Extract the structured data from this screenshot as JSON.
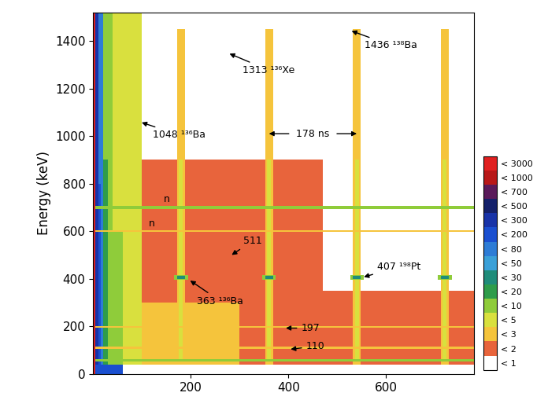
{
  "chart_data": {
    "type": "heatmap",
    "y_label": "Energy (keV)",
    "xlim": [
      0,
      780
    ],
    "ylim": [
      0,
      1520
    ],
    "xticks": [
      200,
      400,
      600
    ],
    "yticks": [
      0,
      200,
      400,
      600,
      800,
      1000,
      1200,
      1400
    ],
    "grid": false,
    "colorbar": {
      "bounds": [
        0,
        1,
        2,
        3,
        5,
        10,
        20,
        30,
        50,
        80,
        200,
        300,
        500,
        700,
        1000,
        3000
      ],
      "labels": [
        "< 1",
        "< 2",
        "< 3",
        "< 5",
        "< 10",
        "< 20",
        "< 30",
        "< 50",
        "< 80",
        "< 200",
        "< 300",
        "< 500",
        "< 700",
        "< 1000",
        "< 3000"
      ],
      "colors": [
        "#ffffff",
        "#e8643c",
        "#f5c43c",
        "#d9e03e",
        "#8fcc3a",
        "#2e9c4a",
        "#1f8c7a",
        "#3aa0d8",
        "#2d7cd6",
        "#1a4fd0",
        "#1833a8",
        "#14206a",
        "#5a1a5a",
        "#b81818",
        "#e02020"
      ]
    },
    "cells": [
      {
        "x": [
          100,
          470
        ],
        "y": [
          40,
          900
        ],
        "value": 1.5
      },
      {
        "x": [
          470,
          780
        ],
        "y": [
          40,
          350
        ],
        "value": 1.5
      },
      {
        "x": [
          60,
          300
        ],
        "y": [
          40,
          300
        ],
        "value": 2.5
      },
      {
        "x": [
          40,
          100
        ],
        "y": [
          40,
          1520
        ],
        "value": 4
      },
      {
        "x": [
          30,
          60
        ],
        "y": [
          40,
          600
        ],
        "value": 7
      },
      {
        "x": [
          20,
          40
        ],
        "y": [
          40,
          1520
        ],
        "value": 7
      },
      {
        "x": [
          15,
          30
        ],
        "y": [
          40,
          900
        ],
        "value": 15
      },
      {
        "x": [
          10,
          20
        ],
        "y": [
          40,
          1520
        ],
        "value": 60
      },
      {
        "x": [
          6,
          15
        ],
        "y": [
          40,
          800
        ],
        "value": 150
      },
      {
        "x": [
          3,
          10
        ],
        "y": [
          40,
          1520
        ],
        "value": 250
      },
      {
        "x": [
          0,
          60
        ],
        "y": [
          0,
          40
        ],
        "value": 100
      },
      {
        "x": [
          172,
          188
        ],
        "y": [
          40,
          1450
        ],
        "value": 2.5
      },
      {
        "x": [
          352,
          368
        ],
        "y": [
          40,
          1450
        ],
        "value": 2.5
      },
      {
        "x": [
          532,
          548
        ],
        "y": [
          40,
          1450
        ],
        "value": 2.5
      },
      {
        "x": [
          712,
          728
        ],
        "y": [
          40,
          1450
        ],
        "value": 2.5
      },
      {
        "x": [
          176,
          184
        ],
        "y": [
          60,
          900
        ],
        "value": 4
      },
      {
        "x": [
          356,
          364
        ],
        "y": [
          60,
          900
        ],
        "value": 4
      },
      {
        "x": [
          536,
          544
        ],
        "y": [
          60,
          900
        ],
        "value": 4
      },
      {
        "x": [
          716,
          724
        ],
        "y": [
          60,
          900
        ],
        "value": 4
      },
      {
        "x": [
          0,
          780
        ],
        "y": [
          693,
          707
        ],
        "value": 7
      },
      {
        "x": [
          0,
          780
        ],
        "y": [
          596,
          604
        ],
        "value": 2.5
      },
      {
        "x": [
          0,
          780
        ],
        "y": [
          193,
          201
        ],
        "value": 2.5
      },
      {
        "x": [
          0,
          780
        ],
        "y": [
          106,
          114
        ],
        "value": 2.5
      },
      {
        "x": [
          0,
          780
        ],
        "y": [
          52,
          64
        ],
        "value": 7
      },
      {
        "x": [
          166,
          194
        ],
        "y": [
          397,
          417
        ],
        "value": 7
      },
      {
        "x": [
          346,
          374
        ],
        "y": [
          397,
          417
        ],
        "value": 7
      },
      {
        "x": [
          526,
          554
        ],
        "y": [
          397,
          417
        ],
        "value": 7
      },
      {
        "x": [
          706,
          734
        ],
        "y": [
          397,
          417
        ],
        "value": 7
      },
      {
        "x": [
          172,
          188
        ],
        "y": [
          401,
          413
        ],
        "value": 20
      },
      {
        "x": [
          352,
          368
        ],
        "y": [
          401,
          413
        ],
        "value": 20
      },
      {
        "x": [
          532,
          548
        ],
        "y": [
          401,
          413
        ],
        "value": 20
      },
      {
        "x": [
          712,
          728
        ],
        "y": [
          401,
          413
        ],
        "value": 20
      },
      {
        "x": [
          0,
          5
        ],
        "y": [
          0,
          1520
        ],
        "value": 1500
      }
    ],
    "annotations": [
      {
        "text": "1436 ¹³⁸Ba",
        "x": 525,
        "y": 1445
      },
      {
        "text": "1313 ¹³⁶Xe",
        "x": 275,
        "y": 1350
      },
      {
        "text": "1048 ¹³⁶Ba",
        "x": 95,
        "y": 1060
      },
      {
        "text": "178 ns",
        "x": [
          360,
          540
        ],
        "y": 1010
      },
      {
        "text": "511",
        "x": 280,
        "y": 495
      },
      {
        "text": "363 ¹³⁶Ba",
        "x": 195,
        "y": 398
      },
      {
        "text": "407 ¹⁹⁸Pt",
        "x": 550,
        "y": 405
      },
      {
        "text": "197",
        "x": 390,
        "y": 193
      },
      {
        "text": "110",
        "x": 400,
        "y": 103
      }
    ],
    "labels": [
      {
        "text": "n",
        "x": 150,
        "y": 712
      },
      {
        "text": "n",
        "x": 120,
        "y": 612
      }
    ]
  }
}
